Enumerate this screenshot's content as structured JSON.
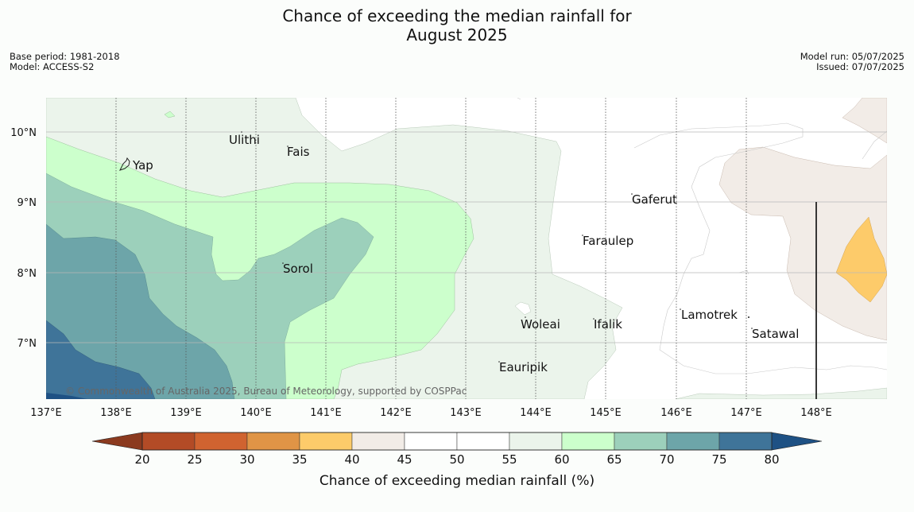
{
  "title_line1": "Chance of exceeding the median rainfall for",
  "title_line2": "August 2025",
  "meta_left": [
    "Base period: 1981-2018",
    "Model: ACCESS-S2"
  ],
  "meta_right": [
    "Model run: 05/07/2025",
    "Issued: 07/07/2025"
  ],
  "copyright": "© Commonwealth of Australia 2025, Bureau of Meteorology, supported by COSPPac",
  "longitude_labels": [
    "137°E",
    "138°E",
    "139°E",
    "140°E",
    "141°E",
    "142°E",
    "143°E",
    "144°E",
    "145°E",
    "146°E",
    "147°E",
    "148°E"
  ],
  "latitude_labels": [
    "10°N",
    "9°N",
    "8°N",
    "7°N"
  ],
  "places": [
    "Yap",
    "Ulithi",
    "Fais",
    "Gaferut",
    "Faraulep",
    "Sorol",
    "Woleai",
    "Ifalik",
    "Lamotrek",
    "Satawal",
    "Eauripik"
  ],
  "colorbar": {
    "title": "Chance of exceeding median rainfall (%)",
    "ticks": [
      "20",
      "25",
      "30",
      "35",
      "40",
      "45",
      "50",
      "55",
      "60",
      "65",
      "70",
      "75",
      "80"
    ],
    "colors": [
      "#8b3a1f",
      "#b34b26",
      "#d06330",
      "#e09446",
      "#fdcb6a",
      "#f2ece7",
      "#ffffff",
      "#ffffff",
      "#ebf4eb",
      "#ccffcc",
      "#9cd0bb",
      "#6da5a9",
      "#3f7499",
      "#1e5184"
    ]
  },
  "map_colors": {
    "background": "#ffffff",
    "c55_60": "#ebf4eb",
    "c60_65": "#ccffcc",
    "c65_70": "#9cd0bb",
    "c70_75": "#6da5a9",
    "c75_80": "#3f7499",
    "c80plus": "#1e5184",
    "c40_45": "#f2ece7",
    "c35_40": "#fdcb6a"
  }
}
